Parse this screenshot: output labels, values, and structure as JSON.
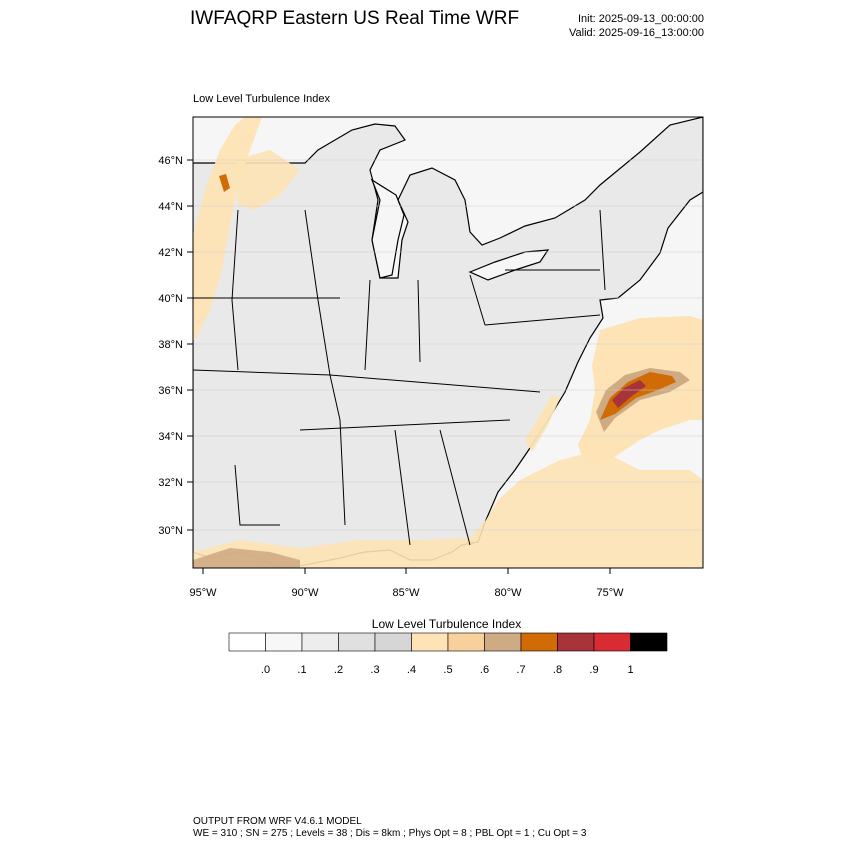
{
  "header": {
    "title": "IWFAQRP Eastern US Real Time WRF",
    "init": "Init: 2025-09-13_00:00:00",
    "valid": "Valid: 2025-09-16_13:00:00"
  },
  "map": {
    "subtitle": "Low Level Turbulence Index",
    "lat_labels": [
      "46°N",
      "44°N",
      "42°N",
      "40°N",
      "38°N",
      "36°N",
      "34°N",
      "32°N",
      "30°N"
    ],
    "lon_labels": [
      "95°W",
      "90°W",
      "85°W",
      "80°W",
      "75°W"
    ],
    "colors": {
      "land": "#e9e9e9",
      "water": "#f6f6f6",
      "state_border": "#000000"
    }
  },
  "colorbar": {
    "title": "Low Level Turbulence Index",
    "labels": [
      ".0",
      ".1",
      ".2",
      ".3",
      ".4",
      ".5",
      ".6",
      ".7",
      ".8",
      ".9",
      "1"
    ],
    "colors": [
      "#ffffff",
      "#f7f7f7",
      "#ededed",
      "#e0e0e0",
      "#d6d6d6",
      "#fde3b5",
      "#f7d09c",
      "#cfab83",
      "#d06b06",
      "#a8343a",
      "#d92b32",
      "#000000"
    ]
  },
  "footer": {
    "line1": "OUTPUT FROM WRF V4.6.1 MODEL",
    "line2": "WE = 310 ; SN = 275 ; Levels = 38 ; Dis = 8km ; Phys Opt = 8 ; PBL Opt = 1 ; Cu Opt = 3"
  }
}
